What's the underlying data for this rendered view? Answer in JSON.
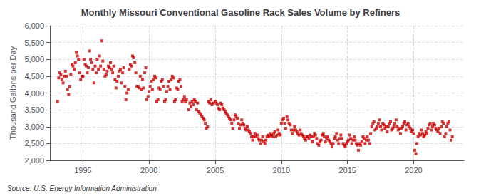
{
  "chart_data": {
    "type": "scatter",
    "title": "Monthly Missouri Conventional Gasoline Rack Sales Volume by Refiners",
    "ylabel": "Thousand Gallons per Day",
    "annotations": [
      "Source: U.S. Energy Information Administration"
    ],
    "color": "#cc0000",
    "marker": "square",
    "grid": true,
    "xlim": [
      1992.5,
      2023.8
    ],
    "xticks": [
      1995,
      2000,
      2005,
      2010,
      2015,
      2020
    ],
    "ylim": [
      2000,
      6000
    ],
    "yticks": [
      {
        "value": 2000,
        "label": "2,000"
      },
      {
        "value": 2500,
        "label": "2,500"
      },
      {
        "value": 3000,
        "label": "3,000"
      },
      {
        "value": 3500,
        "label": "3,500"
      },
      {
        "value": 4000,
        "label": "4,000"
      },
      {
        "value": 4500,
        "label": "4,500"
      },
      {
        "value": 5000,
        "label": "5,000"
      },
      {
        "value": 5500,
        "label": "5,500"
      },
      {
        "value": 6000,
        "label": "6,000"
      }
    ],
    "x": [
      1993.08,
      1993.17,
      1993.25,
      1993.33,
      1993.42,
      1993.5,
      1993.58,
      1993.67,
      1993.75,
      1993.83,
      1993.92,
      1994.0,
      1994.08,
      1994.17,
      1994.25,
      1994.33,
      1994.42,
      1994.5,
      1994.58,
      1994.67,
      1994.75,
      1994.83,
      1994.92,
      1995.0,
      1995.08,
      1995.17,
      1995.25,
      1995.33,
      1995.42,
      1995.5,
      1995.58,
      1995.67,
      1995.75,
      1995.83,
      1995.92,
      1996.0,
      1996.08,
      1996.17,
      1996.25,
      1996.33,
      1996.42,
      1996.5,
      1996.58,
      1996.67,
      1996.75,
      1996.83,
      1996.92,
      1997.0,
      1997.08,
      1997.17,
      1997.25,
      1997.33,
      1997.42,
      1997.5,
      1997.58,
      1997.67,
      1997.75,
      1997.83,
      1997.92,
      1998.0,
      1998.08,
      1998.17,
      1998.25,
      1998.33,
      1998.42,
      1998.5,
      1998.58,
      1998.67,
      1998.75,
      1998.83,
      1998.92,
      1999.0,
      1999.08,
      1999.17,
      1999.25,
      1999.33,
      1999.42,
      1999.5,
      1999.58,
      1999.67,
      1999.75,
      1999.83,
      1999.92,
      2000.0,
      2000.08,
      2000.17,
      2000.25,
      2000.33,
      2000.42,
      2000.5,
      2000.58,
      2000.67,
      2000.75,
      2000.83,
      2000.92,
      2001.0,
      2001.08,
      2001.17,
      2001.25,
      2001.33,
      2001.42,
      2001.5,
      2001.58,
      2001.67,
      2001.75,
      2001.83,
      2001.92,
      2002.0,
      2002.08,
      2002.17,
      2002.25,
      2002.33,
      2002.42,
      2002.5,
      2002.58,
      2002.67,
      2002.75,
      2002.83,
      2003.0,
      2003.08,
      2003.17,
      2003.25,
      2003.33,
      2003.42,
      2003.5,
      2003.58,
      2003.67,
      2003.75,
      2003.83,
      2003.92,
      2004.0,
      2004.08,
      2004.17,
      2004.25,
      2004.33,
      2004.42,
      2004.5,
      2004.58,
      2004.67,
      2004.75,
      2004.83,
      2005.0,
      2005.08,
      2005.17,
      2005.25,
      2005.33,
      2005.42,
      2005.5,
      2005.58,
      2005.67,
      2005.75,
      2005.83,
      2005.92,
      2006.0,
      2006.08,
      2006.17,
      2006.25,
      2006.33,
      2006.42,
      2006.5,
      2006.58,
      2006.67,
      2006.75,
      2006.83,
      2006.92,
      2007.0,
      2007.08,
      2007.17,
      2007.25,
      2007.33,
      2007.42,
      2007.5,
      2007.58,
      2007.67,
      2007.75,
      2007.83,
      2007.92,
      2008.0,
      2008.08,
      2008.17,
      2008.25,
      2008.33,
      2008.42,
      2008.5,
      2008.58,
      2008.67,
      2008.75,
      2008.83,
      2008.92,
      2009.0,
      2009.08,
      2009.17,
      2009.25,
      2009.33,
      2009.42,
      2009.5,
      2009.58,
      2009.67,
      2009.75,
      2009.83,
      2009.92,
      2010.0,
      2010.08,
      2010.17,
      2010.25,
      2010.33,
      2010.42,
      2010.5,
      2010.58,
      2010.67,
      2010.75,
      2010.83,
      2010.92,
      2011.0,
      2011.08,
      2011.17,
      2011.25,
      2011.33,
      2011.42,
      2011.5,
      2011.58,
      2011.67,
      2011.75,
      2011.83,
      2011.92,
      2012.0,
      2012.08,
      2012.17,
      2012.25,
      2012.33,
      2012.42,
      2012.5,
      2012.58,
      2012.67,
      2012.75,
      2012.83,
      2012.92,
      2013.0,
      2013.08,
      2013.17,
      2013.25,
      2013.33,
      2013.42,
      2013.5,
      2013.58,
      2013.67,
      2013.75,
      2013.83,
      2013.92,
      2014.0,
      2014.08,
      2014.17,
      2014.25,
      2014.33,
      2014.42,
      2014.5,
      2014.58,
      2014.67,
      2014.75,
      2014.83,
      2014.92,
      2015.0,
      2015.08,
      2015.17,
      2015.25,
      2015.33,
      2015.42,
      2015.5,
      2015.58,
      2015.67,
      2015.75,
      2015.83,
      2015.92,
      2016.0,
      2016.08,
      2016.17,
      2016.25,
      2016.33,
      2016.42,
      2016.5,
      2016.58,
      2016.67,
      2016.75,
      2016.83,
      2016.92,
      2017.0,
      2017.08,
      2017.17,
      2017.25,
      2017.33,
      2017.42,
      2017.5,
      2017.58,
      2017.67,
      2017.75,
      2017.83,
      2017.92,
      2018.0,
      2018.08,
      2018.17,
      2018.25,
      2018.33,
      2018.42,
      2018.5,
      2018.58,
      2018.67,
      2018.75,
      2018.83,
      2018.92,
      2019.0,
      2019.08,
      2019.17,
      2019.25,
      2019.33,
      2019.42,
      2019.5,
      2019.58,
      2019.67,
      2019.75,
      2019.83,
      2019.92,
      2020.0,
      2020.08,
      2020.17,
      2020.25,
      2020.33,
      2020.42,
      2020.5,
      2020.58,
      2020.67,
      2020.75,
      2020.83,
      2020.92,
      2021.0,
      2021.08,
      2021.17,
      2021.25,
      2021.33,
      2021.42,
      2021.5,
      2021.58,
      2021.67,
      2021.75,
      2021.83,
      2021.92,
      2022.0,
      2022.08,
      2022.17,
      2022.25,
      2022.33,
      2022.42,
      2022.5,
      2022.58,
      2022.67,
      2022.75,
      2022.83,
      2022.92
    ],
    "values": [
      3750,
      4450,
      4600,
      4550,
      4400,
      4300,
      4500,
      4650,
      4500,
      4100,
      3950,
      4200,
      4550,
      4850,
      4800,
      4700,
      4900,
      5200,
      5100,
      5000,
      4600,
      4400,
      4500,
      4500,
      5000,
      4850,
      4800,
      4600,
      4750,
      5250,
      5000,
      4900,
      4700,
      4300,
      4800,
      4600,
      5000,
      4700,
      5100,
      4800,
      5550,
      4950,
      4700,
      4500,
      4550,
      4650,
      4800,
      4750,
      4900,
      4700,
      4600,
      4800,
      4400,
      4150,
      4350,
      4500,
      4650,
      4700,
      4300,
      4600,
      4750,
      4200,
      3800,
      4000,
      4100,
      4700,
      4850,
      4800,
      5100,
      5050,
      4900,
      4600,
      4200,
      4200,
      4150,
      4500,
      4100,
      4400,
      4150,
      4600,
      4750,
      3800,
      3900,
      4050,
      4200,
      4350,
      4100,
      4400,
      4500,
      4450,
      3750,
      3800,
      4150,
      4100,
      4350,
      4400,
      4200,
      3750,
      3800,
      4050,
      4200,
      4350,
      4100,
      4400,
      4500,
      4450,
      3750,
      3800,
      4150,
      4100,
      4350,
      4400,
      4200,
      3750,
      3800,
      3900,
      3750,
      3800,
      3500,
      3700,
      3600,
      3750,
      3650,
      3800,
      3750,
      3500,
      3700,
      3450,
      3400,
      3350,
      3300,
      3250,
      3200,
      3100,
      2950,
      3000,
      3750,
      3700,
      3800,
      3650,
      3700,
      3750,
      3700,
      3650,
      3550,
      3500,
      3700,
      3650,
      3550,
      3500,
      3450,
      3400,
      3350,
      3300,
      3250,
      3200,
      3100,
      2950,
      3200,
      3350,
      3300,
      3250,
      3100,
      2950,
      3050,
      3200,
      3100,
      3050,
      2950,
      2900,
      3000,
      2900,
      2850,
      2800,
      2700,
      2600,
      2700,
      2800,
      2700,
      2750,
      2650,
      2600,
      2500,
      2600,
      2700,
      2550,
      2500,
      2600,
      2700,
      2750,
      2700,
      2800,
      2750,
      2700,
      2800,
      2850,
      2700,
      2750,
      2900,
      2800,
      2750,
      3100,
      3200,
      3250,
      3100,
      2950,
      3300,
      3200,
      3100,
      3050,
      2900,
      2800,
      2900,
      3000,
      2900,
      2850,
      2800,
      2750,
      2900,
      2800,
      2750,
      2700,
      2650,
      2600,
      2700,
      2700,
      2650,
      2750,
      2700,
      2550,
      2700,
      2800,
      2750,
      2650,
      2500,
      2450,
      2550,
      2600,
      2750,
      2800,
      2700,
      2550,
      2650,
      2700,
      2600,
      2550,
      2500,
      2400,
      2500,
      2650,
      2700,
      2800,
      2600,
      2500,
      2650,
      2750,
      2650,
      2500,
      2450,
      2400,
      2500,
      2550,
      2600,
      2750,
      2650,
      2500,
      2600,
      2700,
      2600,
      2500,
      2450,
      2300,
      2500,
      2450,
      2550,
      2700,
      2650,
      2500,
      2600,
      2700,
      2600,
      2500,
      2800,
      3000,
      3100,
      3150,
      2900,
      2950,
      3000,
      3100,
      3200,
      3000,
      2900,
      3100,
      3050,
      2950,
      3000,
      2850,
      3000,
      3100,
      3150,
      2900,
      2950,
      3000,
      3100,
      3200,
      3000,
      2900,
      2950,
      2800,
      2950,
      3000,
      3100,
      3150,
      2900,
      3050,
      3100,
      3000,
      2950,
      2850,
      2900,
      2800,
      2300,
      2200,
      2500,
      2700,
      2800,
      2750,
      2900,
      2800,
      2700,
      2750,
      2850,
      2800,
      2950,
      3050,
      3100,
      2900,
      3000,
      3100,
      3050,
      2950,
      2900,
      2850,
      2950,
      2800,
      3000,
      3150,
      3100,
      2700,
      2800,
      3000,
      3100,
      3150,
      2900,
      2600,
      2700
    ]
  }
}
